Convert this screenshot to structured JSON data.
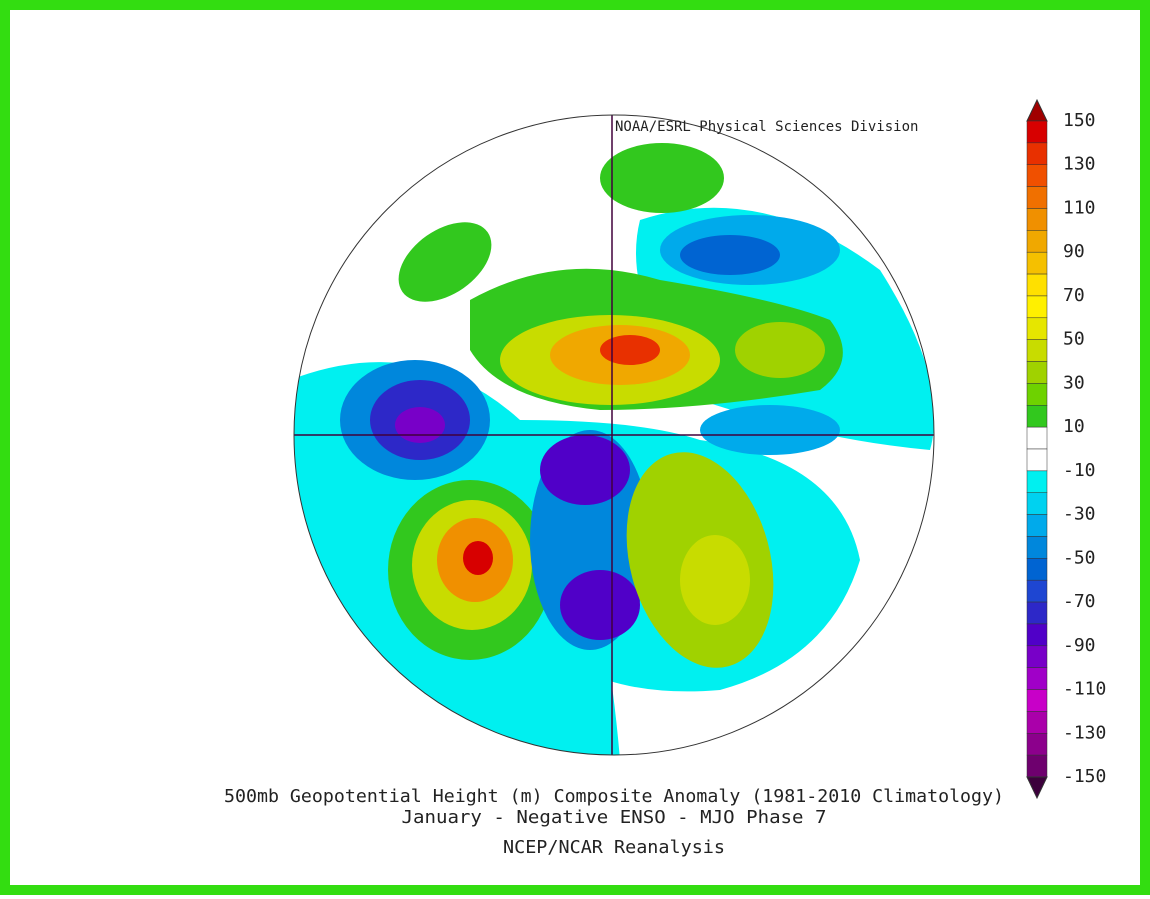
{
  "credit": "NOAA/ESRL Physical Sciences Division",
  "title": [
    "500mb Geopotential Height (m) Composite Anomaly (1981-2010 Climatology)",
    "January - Negative ENSO - MJO Phase 7"
  ],
  "source": "NCEP/NCAR Reanalysis",
  "colorbar": {
    "labels": [
      150,
      130,
      110,
      90,
      70,
      50,
      30,
      10,
      -10,
      -30,
      -50,
      -70,
      -90,
      -110,
      -130,
      -150
    ],
    "top_color": "#a00000",
    "bottom_color": "#3c003c",
    "colors": [
      "#d70000",
      "#e83000",
      "#f05000",
      "#f07000",
      "#f09000",
      "#f0a800",
      "#f5c000",
      "#ffe000",
      "#fff000",
      "#e6e600",
      "#c8dc00",
      "#a0d200",
      "#6ed200",
      "#32c81e",
      "#ffffff",
      "#ffffff",
      "#00f0f0",
      "#00d2f0",
      "#00aaeb",
      "#0087dc",
      "#0064d2",
      "#1e46d2",
      "#2d28c8",
      "#5000c8",
      "#7800c8",
      "#a000c8",
      "#c800c8",
      "#aa00aa",
      "#8c008c",
      "#6e006e"
    ]
  }
}
